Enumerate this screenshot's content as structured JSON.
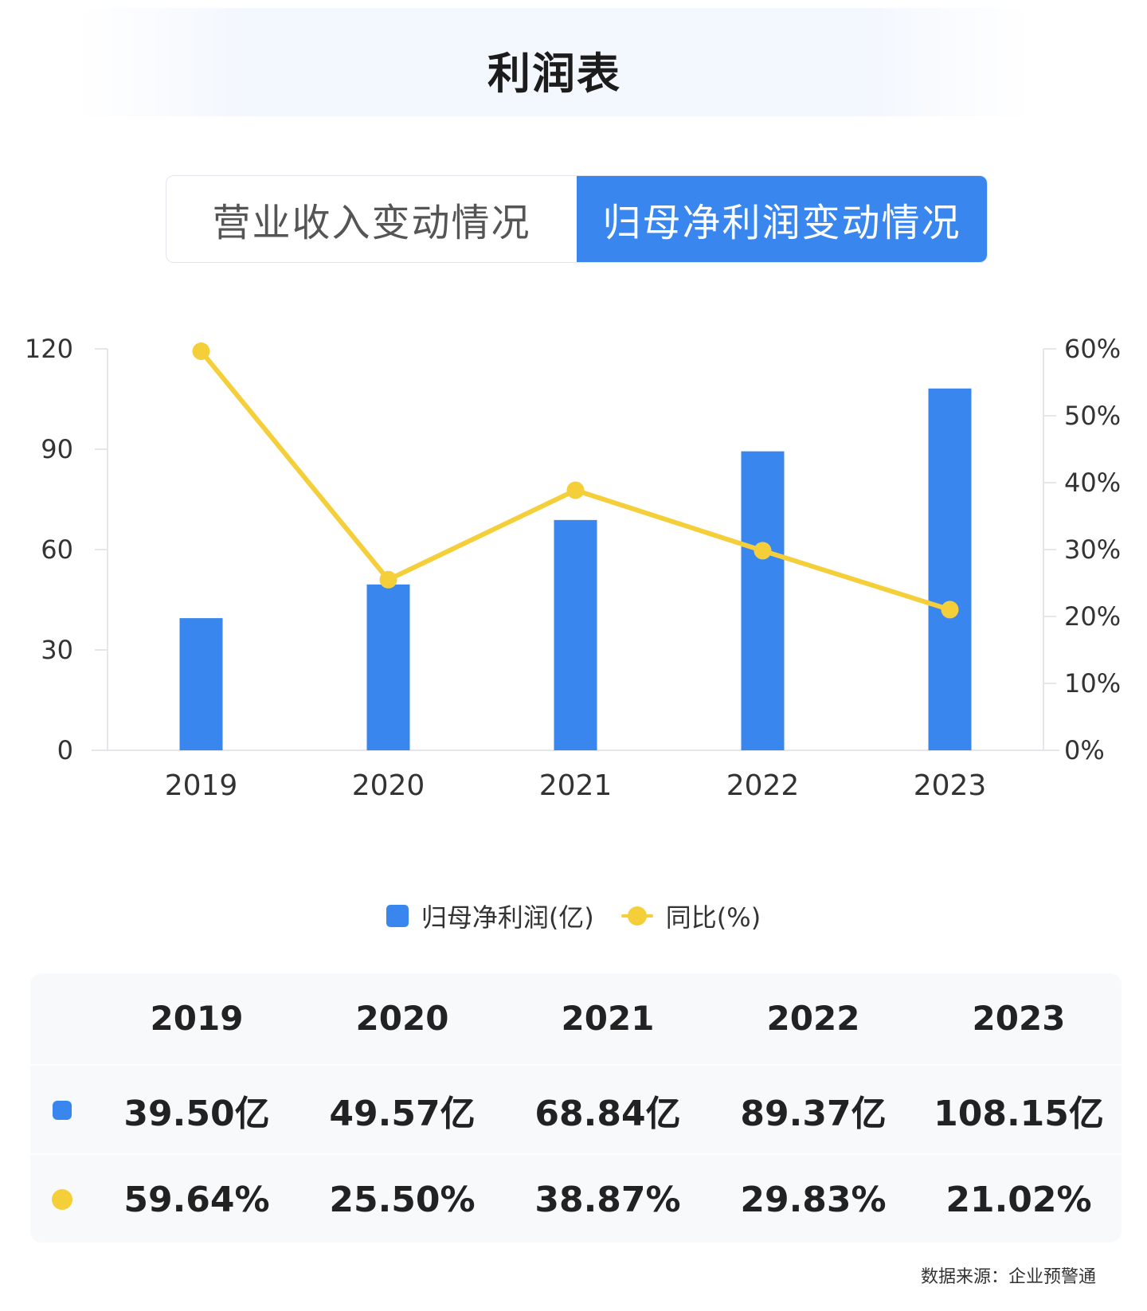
{
  "header": {
    "title": "利润表"
  },
  "tabs": [
    {
      "label": "营业收入变动情况",
      "active": false
    },
    {
      "label": "归母净利润变动情况",
      "active": true
    }
  ],
  "colors": {
    "bar": "#3a86ef",
    "line": "#f4cf3a",
    "active_tab": "#3a86ef"
  },
  "chart_data": {
    "type": "bar",
    "categories": [
      "2019",
      "2020",
      "2021",
      "2022",
      "2023"
    ],
    "series": [
      {
        "name": "归母净利润(亿)",
        "type": "bar",
        "axis": "left",
        "values": [
          39.5,
          49.57,
          68.84,
          89.37,
          108.15
        ]
      },
      {
        "name": "同比(%)",
        "type": "line",
        "axis": "right",
        "values": [
          59.64,
          25.5,
          38.87,
          29.83,
          21.02
        ]
      }
    ],
    "y_left": {
      "min": 0,
      "max": 120,
      "ticks": [
        "0",
        "30",
        "60",
        "90",
        "120"
      ]
    },
    "y_right": {
      "min": 0,
      "max": 60,
      "ticks": [
        "0%",
        "10%",
        "20%",
        "30%",
        "40%",
        "50%",
        "60%"
      ]
    },
    "grid": false,
    "legend": "bottom-center"
  },
  "legend": {
    "bar_label": "归母净利润(亿)",
    "line_label": "同比(%)"
  },
  "table": {
    "years": [
      "2019",
      "2020",
      "2021",
      "2022",
      "2023"
    ],
    "profit": [
      "39.50亿",
      "49.57亿",
      "68.84亿",
      "89.37亿",
      "108.15亿"
    ],
    "yoy": [
      "59.64%",
      "25.50%",
      "38.87%",
      "29.83%",
      "21.02%"
    ]
  },
  "footer": {
    "source": "数据来源：企业预警通"
  }
}
